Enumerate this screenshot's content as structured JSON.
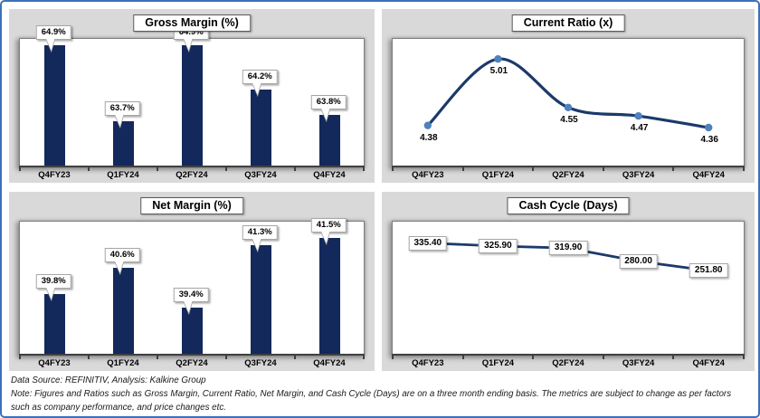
{
  "page": {
    "border_color": "#3e70b9",
    "panel_bg": "#d9d9d9",
    "bar_color": "#13295b",
    "line_color": "#1b3a6b",
    "marker_color": "#4e81bd"
  },
  "footer": {
    "source_line": "Data Source: REFINITIV, Analysis: Kalkine Group",
    "note_line": "Note: Figures and Ratios such as Gross Margin, Current Ratio, Net Margin, and Cash Cycle (Days) are on a three month ending basis. The metrics are subject to change as per factors such as company performance, and price changes etc."
  },
  "chart_data": [
    {
      "id": "gross-margin",
      "type": "bar",
      "title": "Gross Margin (%)",
      "categories": [
        "Q4FY23",
        "Q1FY24",
        "Q2FY24",
        "Q3FY24",
        "Q4FY24"
      ],
      "values": [
        64.9,
        63.7,
        64.9,
        64.2,
        63.8
      ],
      "labels": [
        "64.9%",
        "63.7%",
        "64.9%",
        "64.2%",
        "63.8%"
      ],
      "ylim": [
        63,
        65
      ],
      "label_style": "callout",
      "grid": false,
      "legend": "none"
    },
    {
      "id": "current-ratio",
      "type": "line",
      "title": "Current Ratio (x)",
      "categories": [
        "Q4FY23",
        "Q1FY24",
        "Q2FY24",
        "Q3FY24",
        "Q4FY24"
      ],
      "values": [
        4.38,
        5.01,
        4.55,
        4.47,
        4.36
      ],
      "labels": [
        "4.38",
        "5.01",
        "4.55",
        "4.47",
        "4.36"
      ],
      "ylim": [
        4.0,
        5.2
      ],
      "smooth": true,
      "markers": true,
      "label_style": "below",
      "grid": false,
      "legend": "none"
    },
    {
      "id": "net-margin",
      "type": "bar",
      "title": "Net Margin (%)",
      "categories": [
        "Q4FY23",
        "Q1FY24",
        "Q2FY24",
        "Q3FY24",
        "Q4FY24"
      ],
      "values": [
        39.8,
        40.6,
        39.4,
        41.3,
        41.5
      ],
      "labels": [
        "39.8%",
        "40.6%",
        "39.4%",
        "41.3%",
        "41.5%"
      ],
      "ylim": [
        38,
        42
      ],
      "label_style": "callout",
      "grid": false,
      "legend": "none"
    },
    {
      "id": "cash-cycle",
      "type": "line",
      "title": "Cash Cycle (Days)",
      "categories": [
        "Q4FY23",
        "Q1FY24",
        "Q2FY24",
        "Q3FY24",
        "Q4FY24"
      ],
      "values": [
        335.4,
        325.9,
        319.9,
        280.0,
        251.8
      ],
      "labels": [
        "335.40",
        "325.90",
        "319.90",
        "280.00",
        "251.80"
      ],
      "ylim": [
        0,
        400
      ],
      "smooth": false,
      "markers": false,
      "label_style": "box",
      "grid": false,
      "legend": "none"
    }
  ]
}
